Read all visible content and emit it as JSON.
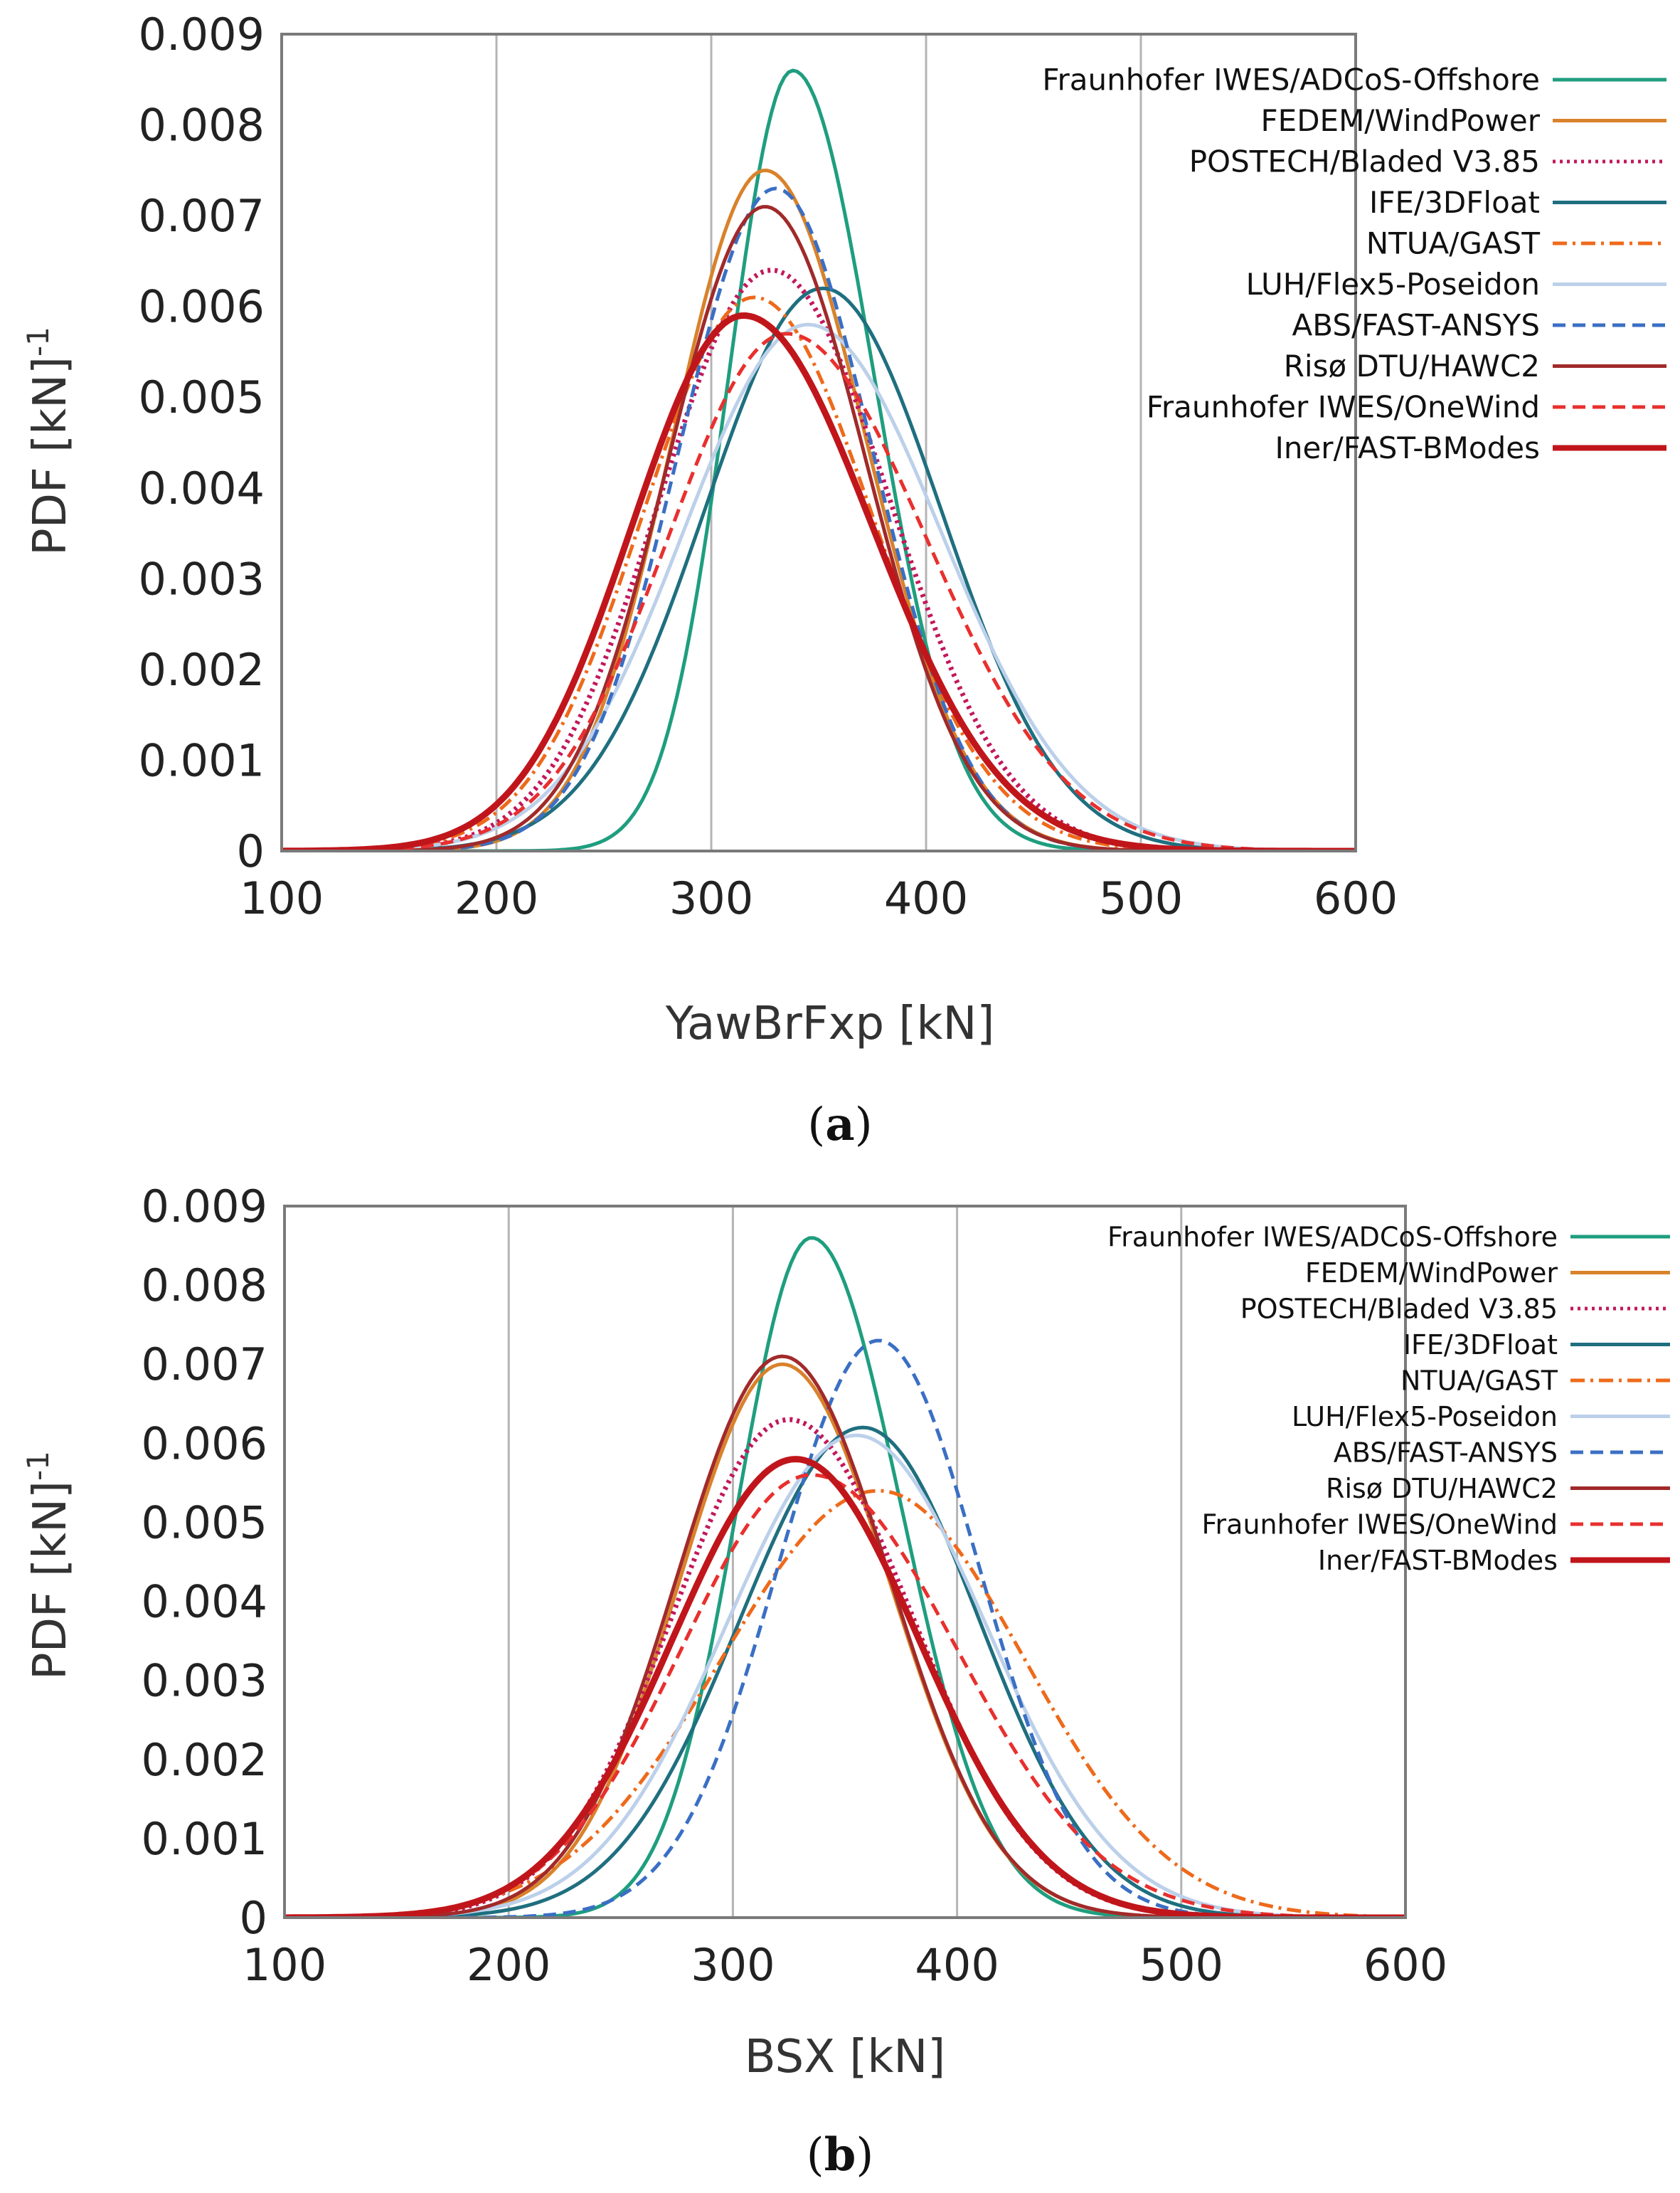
{
  "chart_data": [
    {
      "type": "line",
      "panel_label": "a",
      "xlabel": "YawBrFxp [kN]",
      "ylabel": "PDF [kN]",
      "ylabel_sup": "-1",
      "xlim": [
        100,
        600
      ],
      "ylim": [
        0,
        0.009
      ],
      "xticks": [
        100,
        200,
        300,
        400,
        500,
        600
      ],
      "yticks": [
        "0",
        "0.001",
        "0.002",
        "0.003",
        "0.004",
        "0.005",
        "0.006",
        "0.007",
        "0.008",
        "0.009"
      ],
      "grid": true,
      "legend_position": "top-right",
      "series": [
        {
          "name": "Fraunhofer IWES/ADCoS-Offshore",
          "color": "#1f9e7f",
          "style": "solid",
          "peak": 0.0086,
          "mode": 338,
          "sl": 30,
          "sr": 38
        },
        {
          "name": "FEDEM/WindPower",
          "color": "#d9822b",
          "style": "solid",
          "peak": 0.0075,
          "mode": 325,
          "sl": 43,
          "sr": 47
        },
        {
          "name": "POSTECH/Bladed V3.85",
          "color": "#c2185b",
          "style": "dotted",
          "peak": 0.0064,
          "mode": 328,
          "sl": 52,
          "sr": 55
        },
        {
          "name": "IFE/3DFloat",
          "color": "#1f6f7f",
          "style": "solid",
          "peak": 0.0062,
          "mode": 352,
          "sl": 55,
          "sr": 55
        },
        {
          "name": "NTUA/GAST",
          "color": "#ee6a1b",
          "style": "dashdot",
          "peak": 0.0061,
          "mode": 320,
          "sl": 52,
          "sr": 55
        },
        {
          "name": "LUH/Flex5-Poseidon",
          "color": "#bcd0ea",
          "style": "solid",
          "peak": 0.0058,
          "mode": 345,
          "sl": 58,
          "sr": 62
        },
        {
          "name": "ABS/FAST-ANSYS",
          "color": "#3a6fc4",
          "style": "dashed",
          "peak": 0.0073,
          "mode": 330,
          "sl": 45,
          "sr": 45
        },
        {
          "name": "Risø DTU/HAWC2",
          "color": "#a12a2a",
          "style": "solid",
          "peak": 0.0071,
          "mode": 325,
          "sl": 45,
          "sr": 47
        },
        {
          "name": "Fraunhofer IWES/OneWind",
          "color": "#e8302e",
          "style": "dashed",
          "peak": 0.0057,
          "mode": 335,
          "sl": 55,
          "sr": 65
        },
        {
          "name": "Iner/FAST-BModes",
          "color": "#c0161b",
          "style": "thick",
          "peak": 0.0059,
          "mode": 315,
          "sl": 52,
          "sr": 60
        }
      ]
    },
    {
      "type": "line",
      "panel_label": "b",
      "xlabel": "BSX [kN]",
      "ylabel": "PDF [kN]",
      "ylabel_sup": "-1",
      "xlim": [
        100,
        600
      ],
      "ylim": [
        0,
        0.009
      ],
      "xticks": [
        100,
        200,
        300,
        400,
        500,
        600
      ],
      "yticks": [
        "0",
        "0.001",
        "0.002",
        "0.003",
        "0.004",
        "0.005",
        "0.006",
        "0.007",
        "0.008",
        "0.009"
      ],
      "grid": true,
      "legend_position": "top-right",
      "series": [
        {
          "name": "Fraunhofer IWES/ADCoS-Offshore",
          "color": "#1f9e7f",
          "style": "solid",
          "peak": 0.0086,
          "mode": 335,
          "sl": 33,
          "sr": 40
        },
        {
          "name": "FEDEM/WindPower",
          "color": "#d9822b",
          "style": "solid",
          "peak": 0.007,
          "mode": 322,
          "sl": 46,
          "sr": 48
        },
        {
          "name": "POSTECH/Bladed V3.85",
          "color": "#c2185b",
          "style": "dotted",
          "peak": 0.0063,
          "mode": 325,
          "sl": 52,
          "sr": 55
        },
        {
          "name": "IFE/3DFloat",
          "color": "#1f6f7f",
          "style": "solid",
          "peak": 0.0062,
          "mode": 358,
          "sl": 55,
          "sr": 52
        },
        {
          "name": "NTUA/GAST",
          "color": "#ee6a1b",
          "style": "dashdot",
          "peak": 0.0054,
          "mode": 365,
          "sl": 70,
          "sr": 65
        },
        {
          "name": "LUH/Flex5-Poseidon",
          "color": "#bcd0ea",
          "style": "solid",
          "peak": 0.0061,
          "mode": 355,
          "sl": 58,
          "sr": 58
        },
        {
          "name": "ABS/FAST-ANSYS",
          "color": "#3a6fc4",
          "style": "dashed",
          "peak": 0.0073,
          "mode": 365,
          "sl": 45,
          "sr": 45
        },
        {
          "name": "Risø DTU/HAWC2",
          "color": "#a12a2a",
          "style": "solid",
          "peak": 0.0071,
          "mode": 322,
          "sl": 47,
          "sr": 48
        },
        {
          "name": "Fraunhofer IWES/OneWind",
          "color": "#e8302e",
          "style": "dashed",
          "peak": 0.0056,
          "mode": 335,
          "sl": 58,
          "sr": 65
        },
        {
          "name": "Iner/FAST-BModes",
          "color": "#c0161b",
          "style": "thick",
          "peak": 0.0058,
          "mode": 328,
          "sl": 55,
          "sr": 55
        }
      ]
    }
  ]
}
